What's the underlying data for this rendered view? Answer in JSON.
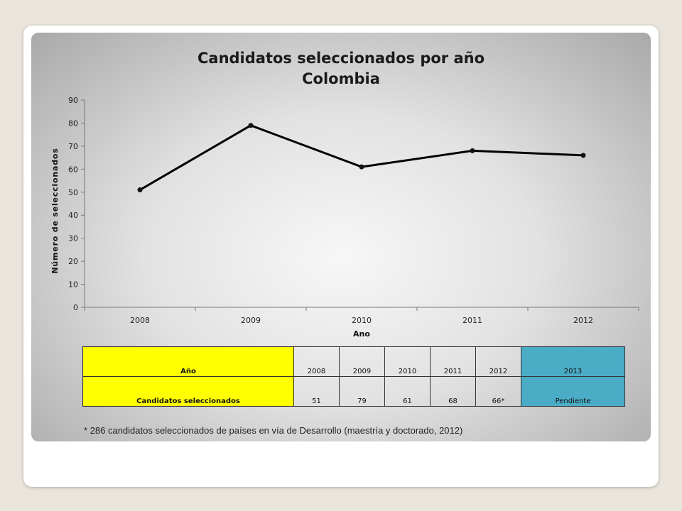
{
  "chart_data": {
    "type": "line",
    "title": "Candidatos seleccionados por año",
    "subtitle": "Colombia",
    "xlabel": "Ano",
    "ylabel": "Número de seleccionados",
    "categories": [
      "2008",
      "2009",
      "2010",
      "2011",
      "2012"
    ],
    "values": [
      51,
      79,
      61,
      68,
      66
    ],
    "ylim": [
      0,
      90
    ],
    "yticks": [
      0,
      10,
      20,
      30,
      40,
      50,
      60,
      70,
      80,
      90
    ],
    "grid": false,
    "line_color": "#000000"
  },
  "table": {
    "row1_header": "Año",
    "row1_values": [
      "2008",
      "2009",
      "2010",
      "2011",
      "2012"
    ],
    "row1_last": "2013",
    "row2_header": "Candidatos seleccionados",
    "row2_values": [
      "51",
      "79",
      "61",
      "68",
      "66*"
    ],
    "row2_last": "Pendiente",
    "header_color": "#ffff00",
    "last_col_color": "#4bacc6"
  },
  "footnote": "* 286 candidatos seleccionados de países en vía de Desarrollo (maestría y doctorado, 2012)"
}
